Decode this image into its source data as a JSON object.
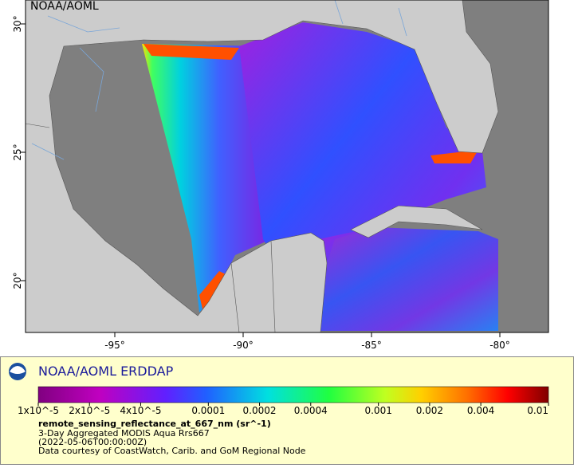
{
  "map": {
    "watermark": "NOAA/AOML",
    "lon_ticks": [
      {
        "value": -95,
        "label": "-95°"
      },
      {
        "value": -90,
        "label": "-90°"
      },
      {
        "value": -85,
        "label": "-85°"
      },
      {
        "value": -80,
        "label": "-80°"
      }
    ],
    "lat_ticks": [
      {
        "value": 20,
        "label": "20°"
      },
      {
        "value": 25,
        "label": "25°"
      },
      {
        "value": 30,
        "label": "30°"
      }
    ]
  },
  "legend": {
    "title": "NOAA/AOML ERDDAP",
    "colorbar_ticks": [
      {
        "value": 1e-05,
        "label": "1x10^-5"
      },
      {
        "value": 2e-05,
        "label": "2x10^-5"
      },
      {
        "value": 4e-05,
        "label": "4x10^-5"
      },
      0.0001,
      0.0002,
      0.0004,
      0.001,
      0.002,
      0.004,
      0.01
    ],
    "variable": "remote_sensing_reflectance_at_667_nm (sr^-1)",
    "dataset": "3-Day Aggregated MODIS Aqua Rrs667",
    "time": "(2022-05-06T00:00:00Z)",
    "credit": "Data courtesy of CoastWatch, Carib. and GoM Regional Node"
  }
}
